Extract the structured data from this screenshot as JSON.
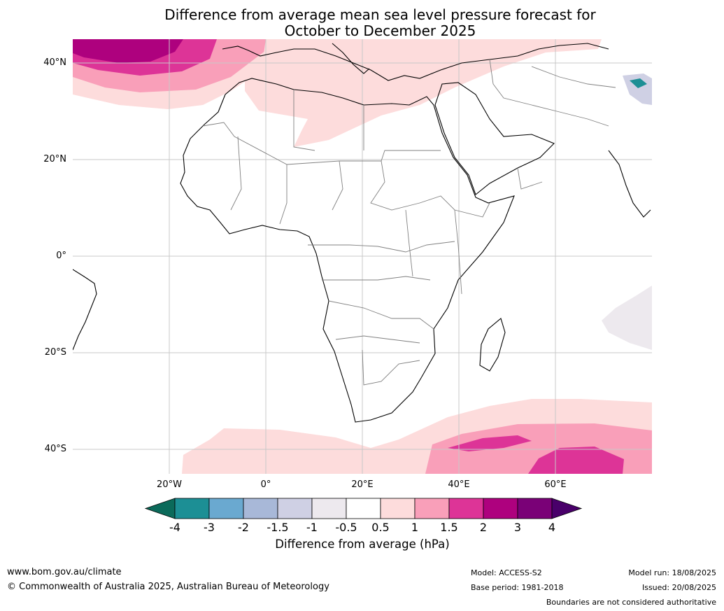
{
  "title": {
    "line1": "Difference from average mean sea level pressure forecast for",
    "line2": "October to December 2025"
  },
  "map": {
    "region": "Africa",
    "latitude_labels": [
      "40°N",
      "20°N",
      "0°",
      "20°S",
      "40°S"
    ],
    "longitude_labels": [
      "20°W",
      "0°",
      "20°E",
      "40°E",
      "60°E"
    ],
    "grid": true
  },
  "colorbar": {
    "title": "Difference from average (hPa)",
    "tick_labels": [
      "-4",
      "-3",
      "-2",
      "-1.5",
      "-1",
      "-0.5",
      "0.5",
      "1",
      "1.5",
      "2",
      "3",
      "4"
    ],
    "colors": {
      "below_min": "#0b6a5a",
      "bins": [
        "#1c8f95",
        "#6aa9d0",
        "#a8b8d8",
        "#cfd0e4",
        "#ede9ee",
        "#ffffff",
        "#fddcdc",
        "#f99fb9",
        "#dd3497",
        "#ae017e",
        "#7a0177"
      ],
      "above_max": "#49006a"
    }
  },
  "footer": {
    "website": "www.bom.gov.au/climate",
    "copyright": "© Commonwealth of Australia 2025, Australian Bureau of Meteorology",
    "model": "Model: ACCESS-S2",
    "base_period": "Base period: 1981-2018",
    "model_run": "Model run: 18/08/2025",
    "issued": "Issued: 20/08/2025",
    "disclaimer": "Boundaries are not considered authoritative"
  }
}
